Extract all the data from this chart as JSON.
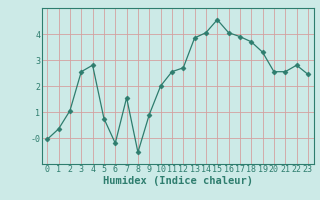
{
  "x": [
    0,
    1,
    2,
    3,
    4,
    5,
    6,
    7,
    8,
    9,
    10,
    11,
    12,
    13,
    14,
    15,
    16,
    17,
    18,
    19,
    20,
    21,
    22,
    23
  ],
  "y": [
    -0.05,
    0.35,
    1.05,
    2.55,
    2.8,
    0.75,
    -0.2,
    1.55,
    -0.55,
    0.9,
    2.0,
    2.55,
    2.7,
    3.85,
    4.05,
    4.55,
    4.05,
    3.9,
    3.7,
    3.3,
    2.55,
    2.55,
    2.8,
    2.45
  ],
  "line_color": "#2e7d6e",
  "marker": "D",
  "marker_size": 2.5,
  "bg_color": "#cceae7",
  "grid_color": "#d4a0a0",
  "title": "",
  "xlabel": "Humidex (Indice chaleur)",
  "xlim": [
    -0.5,
    23.5
  ],
  "ylim": [
    -1.0,
    5.0
  ],
  "xticks": [
    0,
    1,
    2,
    3,
    4,
    5,
    6,
    7,
    8,
    9,
    10,
    11,
    12,
    13,
    14,
    15,
    16,
    17,
    18,
    19,
    20,
    21,
    22,
    23
  ],
  "yticks": [
    0,
    1,
    2,
    3,
    4
  ],
  "ytick_labels": [
    "-0",
    "1",
    "2",
    "3",
    "4"
  ],
  "xlabel_fontsize": 7.5,
  "tick_fontsize": 6.0,
  "tick_color": "#2e7d6e",
  "spine_color": "#2e7d6e"
}
